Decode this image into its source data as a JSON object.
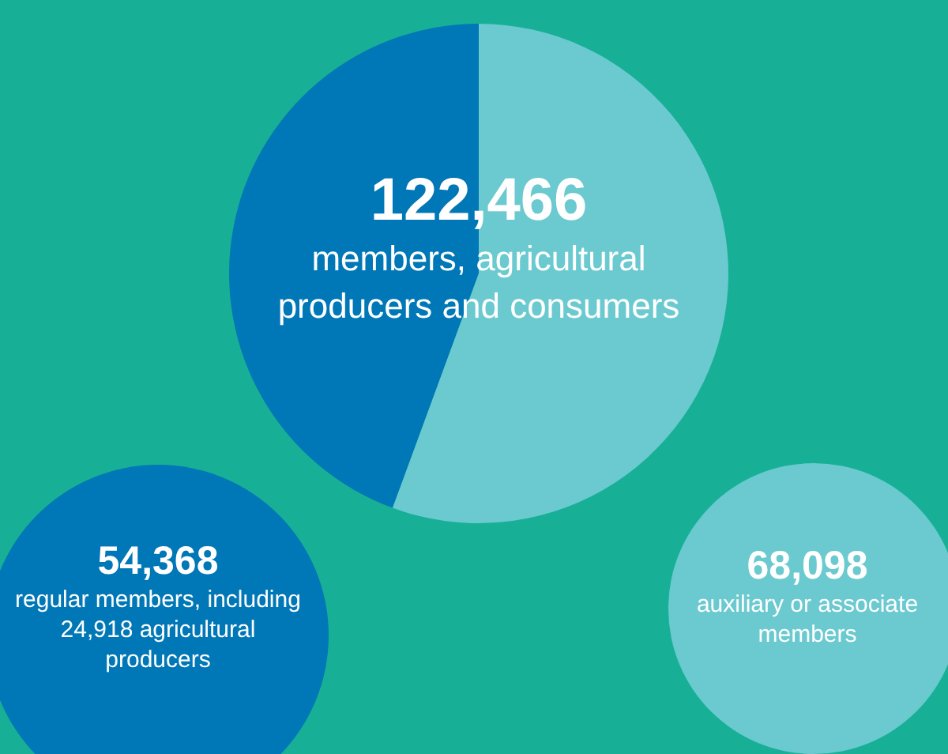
{
  "chart_data": {
    "type": "pie",
    "title": "122,466",
    "subtitle": "members, agricultural producers and consumers",
    "categories": [
      "regular members, including 24,918 agricultural producers",
      "auxiliary or associate members"
    ],
    "values": [
      54368,
      68098
    ],
    "value_labels": [
      "54,368",
      "68,098"
    ],
    "colors": [
      "#0077b6",
      "#6bc9d0"
    ],
    "legend": false
  }
}
